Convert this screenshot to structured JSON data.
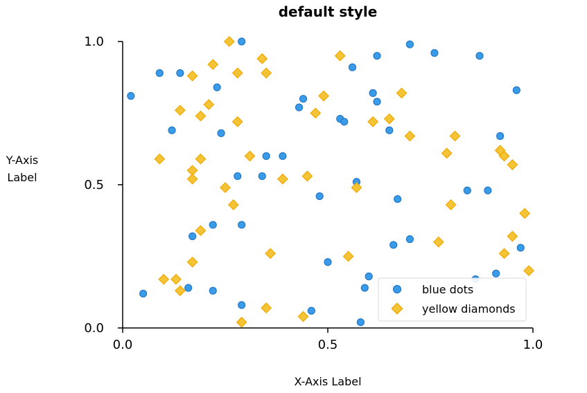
{
  "chart_data": {
    "type": "scatter",
    "title": "default style",
    "xlabel": "X-Axis Label",
    "ylabel_lines": [
      "Y-Axis",
      "Label"
    ],
    "xlim": [
      0,
      1
    ],
    "ylim": [
      0,
      1
    ],
    "xticks": [
      0.0,
      0.5,
      1.0
    ],
    "xtick_labels": [
      "0.0",
      "0.5",
      "1.0"
    ],
    "yticks": [
      0.0,
      0.5,
      1.0
    ],
    "ytick_labels": [
      "0.0",
      "0.5",
      "1.0"
    ],
    "grid": false,
    "legend_position": "bottom-right",
    "series": [
      {
        "name": "blue dots",
        "marker": "circle",
        "color": "#3a9be8",
        "edge_color": "#2478c8",
        "points": [
          [
            0.02,
            0.81
          ],
          [
            0.05,
            0.12
          ],
          [
            0.09,
            0.89
          ],
          [
            0.12,
            0.69
          ],
          [
            0.14,
            0.89
          ],
          [
            0.16,
            0.14
          ],
          [
            0.17,
            0.32
          ],
          [
            0.22,
            0.36
          ],
          [
            0.22,
            0.13
          ],
          [
            0.23,
            0.84
          ],
          [
            0.24,
            0.68
          ],
          [
            0.28,
            0.53
          ],
          [
            0.29,
            0.08
          ],
          [
            0.29,
            0.36
          ],
          [
            0.29,
            1.0
          ],
          [
            0.34,
            0.53
          ],
          [
            0.35,
            0.6
          ],
          [
            0.39,
            0.6
          ],
          [
            0.43,
            0.77
          ],
          [
            0.44,
            0.8
          ],
          [
            0.46,
            0.06
          ],
          [
            0.48,
            0.46
          ],
          [
            0.5,
            0.23
          ],
          [
            0.53,
            0.73
          ],
          [
            0.54,
            0.72
          ],
          [
            0.56,
            0.91
          ],
          [
            0.57,
            0.51
          ],
          [
            0.58,
            0.02
          ],
          [
            0.59,
            0.14
          ],
          [
            0.6,
            0.18
          ],
          [
            0.61,
            0.82
          ],
          [
            0.62,
            0.79
          ],
          [
            0.62,
            0.95
          ],
          [
            0.65,
            0.69
          ],
          [
            0.66,
            0.29
          ],
          [
            0.67,
            0.45
          ],
          [
            0.7,
            0.99
          ],
          [
            0.7,
            0.31
          ],
          [
            0.76,
            0.96
          ],
          [
            0.84,
            0.48
          ],
          [
            0.86,
            0.17
          ],
          [
            0.87,
            0.95
          ],
          [
            0.89,
            0.48
          ],
          [
            0.91,
            0.19
          ],
          [
            0.92,
            0.67
          ],
          [
            0.96,
            0.83
          ],
          [
            0.97,
            0.28
          ]
        ]
      },
      {
        "name": "yellow diamonds",
        "marker": "diamond",
        "color": "#f5c436",
        "edge_color": "#f0a800",
        "points": [
          [
            0.09,
            0.59
          ],
          [
            0.1,
            0.17
          ],
          [
            0.13,
            0.17
          ],
          [
            0.14,
            0.13
          ],
          [
            0.14,
            0.76
          ],
          [
            0.17,
            0.23
          ],
          [
            0.17,
            0.88
          ],
          [
            0.17,
            0.55
          ],
          [
            0.17,
            0.52
          ],
          [
            0.19,
            0.74
          ],
          [
            0.19,
            0.59
          ],
          [
            0.19,
            0.34
          ],
          [
            0.21,
            0.78
          ],
          [
            0.22,
            0.92
          ],
          [
            0.25,
            0.49
          ],
          [
            0.26,
            1.0
          ],
          [
            0.27,
            0.43
          ],
          [
            0.28,
            0.72
          ],
          [
            0.28,
            0.89
          ],
          [
            0.29,
            0.02
          ],
          [
            0.31,
            0.6
          ],
          [
            0.34,
            0.94
          ],
          [
            0.35,
            0.89
          ],
          [
            0.35,
            0.07
          ],
          [
            0.36,
            0.26
          ],
          [
            0.39,
            0.52
          ],
          [
            0.44,
            0.04
          ],
          [
            0.45,
            0.53
          ],
          [
            0.47,
            0.75
          ],
          [
            0.49,
            0.81
          ],
          [
            0.53,
            0.95
          ],
          [
            0.55,
            0.25
          ],
          [
            0.57,
            0.49
          ],
          [
            0.61,
            0.72
          ],
          [
            0.65,
            0.73
          ],
          [
            0.68,
            0.82
          ],
          [
            0.7,
            0.67
          ],
          [
            0.77,
            0.3
          ],
          [
            0.79,
            0.61
          ],
          [
            0.8,
            0.43
          ],
          [
            0.81,
            0.67
          ],
          [
            0.92,
            0.62
          ],
          [
            0.93,
            0.6
          ],
          [
            0.93,
            0.26
          ],
          [
            0.95,
            0.32
          ],
          [
            0.95,
            0.57
          ],
          [
            0.98,
            0.4
          ],
          [
            0.99,
            0.2
          ]
        ]
      }
    ]
  }
}
